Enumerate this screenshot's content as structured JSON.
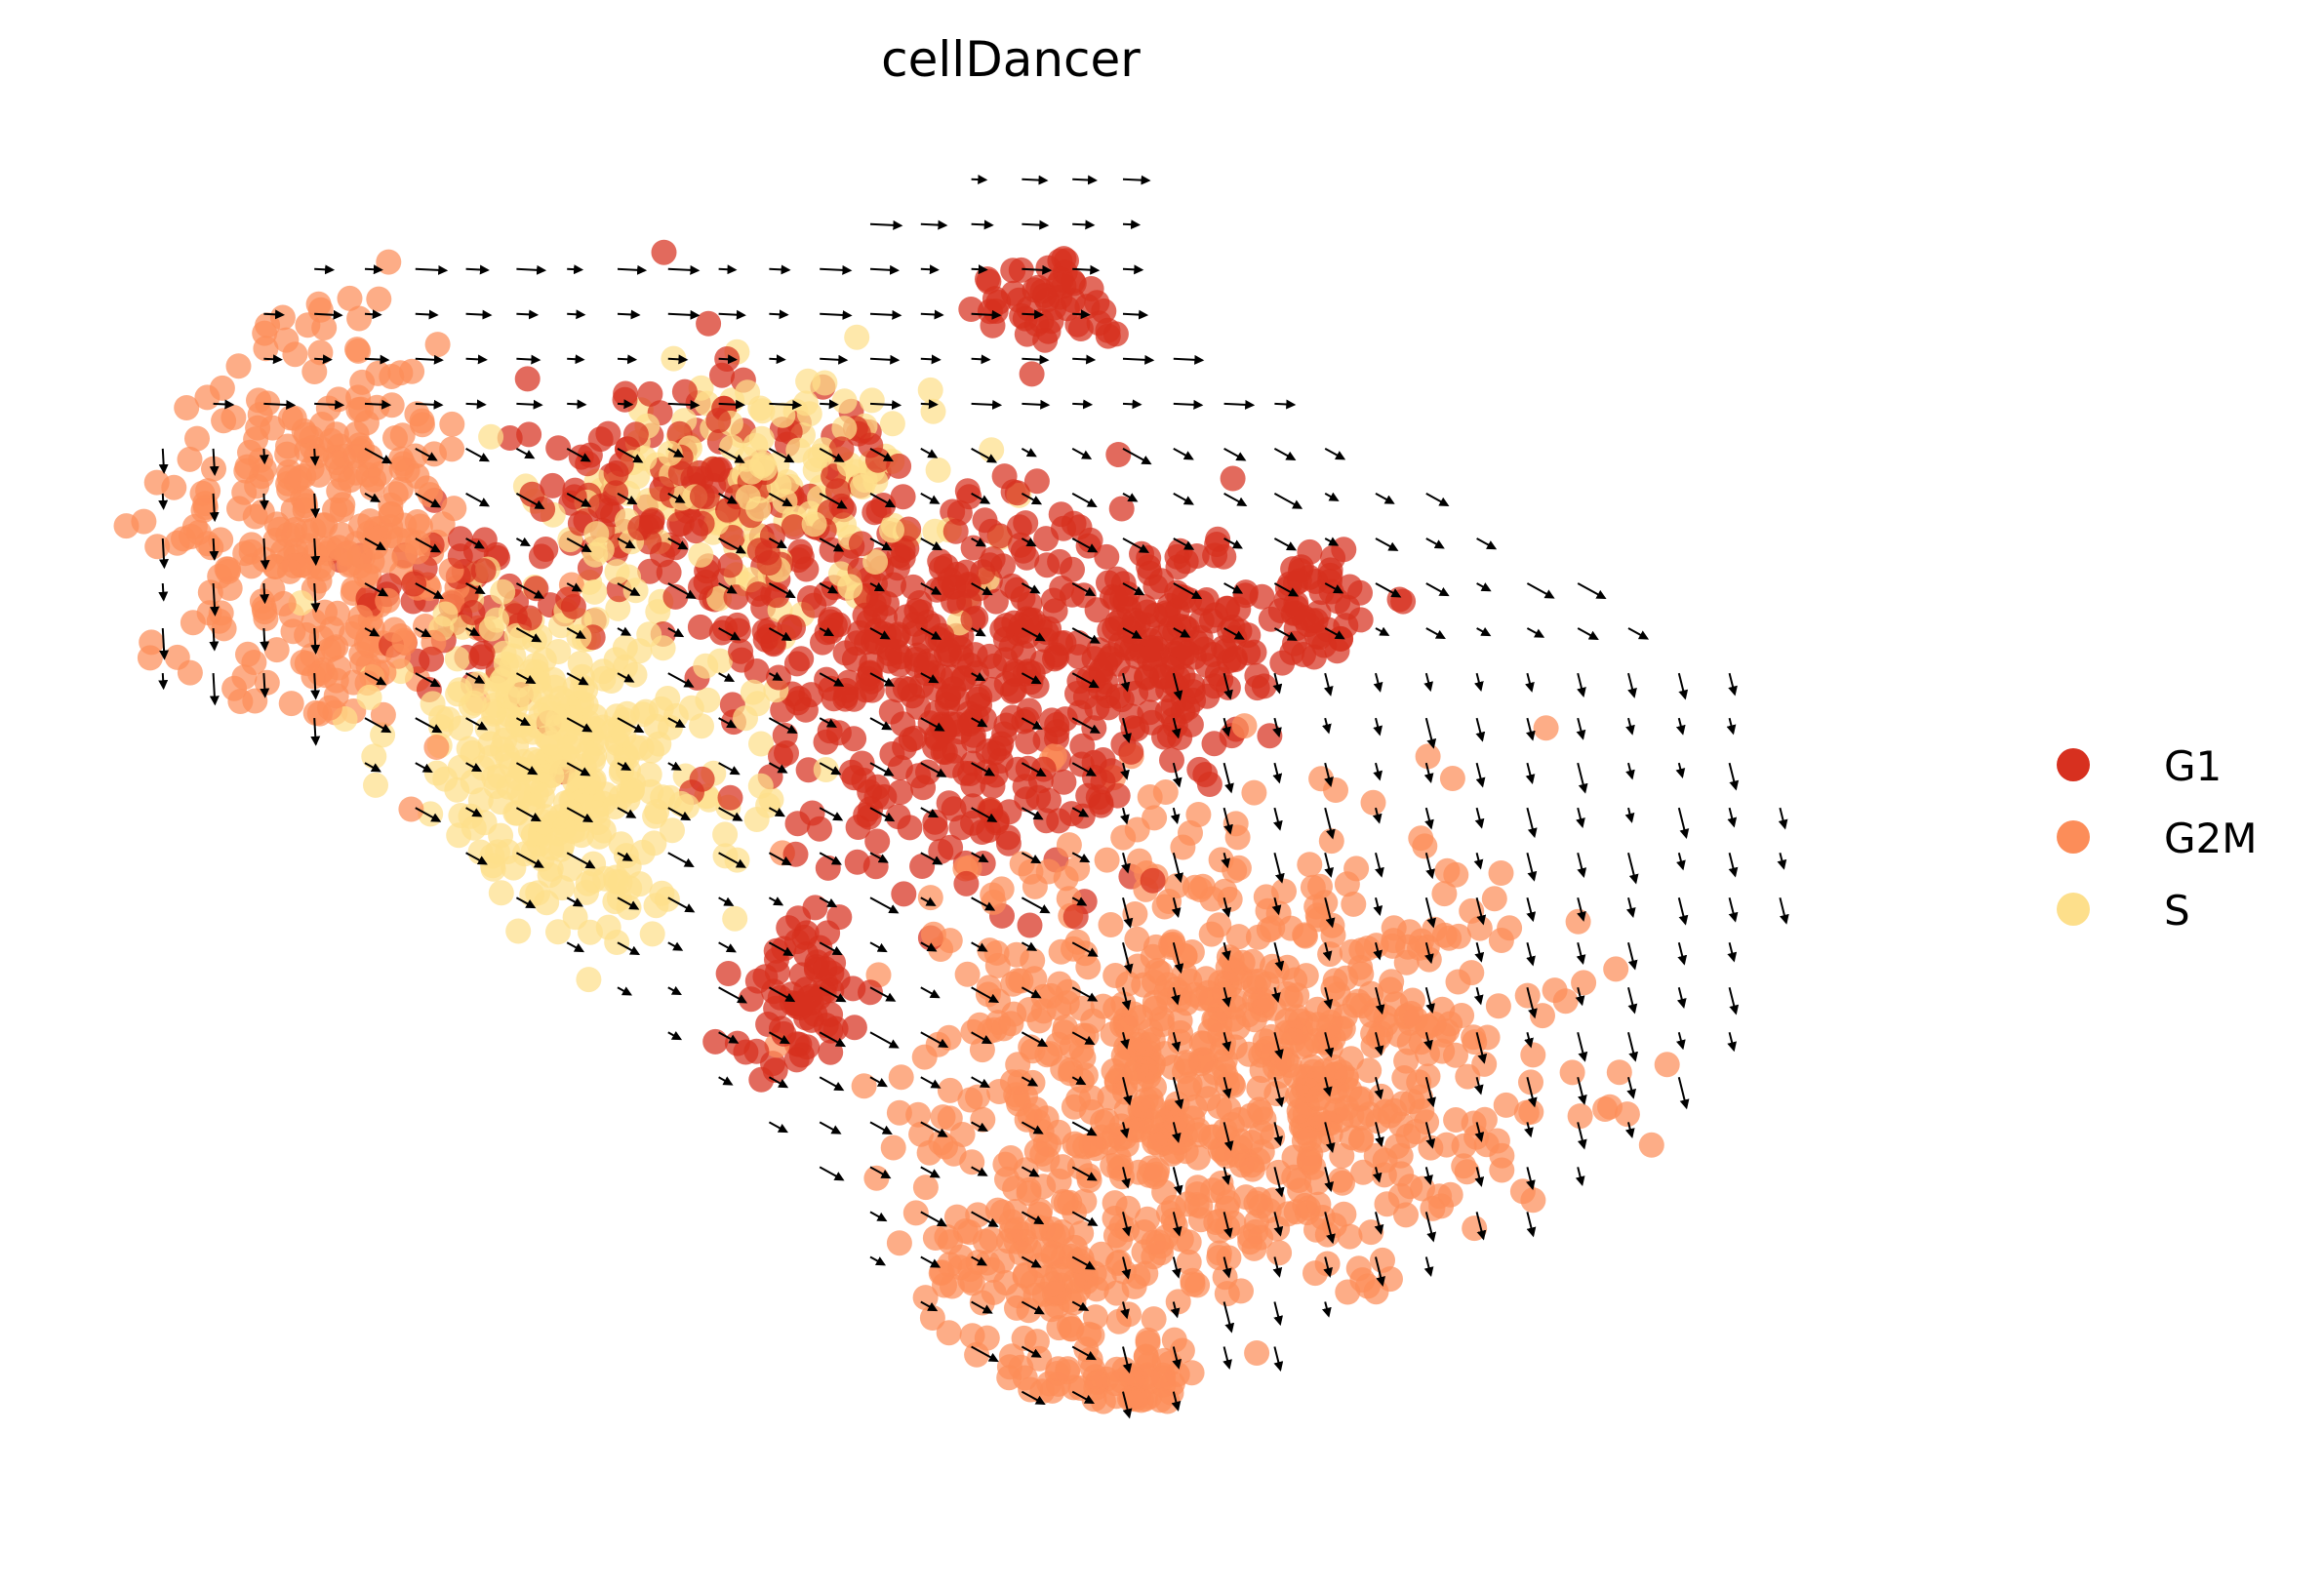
{
  "chart_data": {
    "type": "scatter",
    "title": "cellDancer",
    "xlabel": "",
    "ylabel": "",
    "axes_visible": false,
    "grid": false,
    "legend_position": "right",
    "overlay": "velocity arrows (black)",
    "colors": {
      "G1": "#d7301f",
      "G2M": "#fc8d59",
      "S": "#fddf8b",
      "arrow": "#000000"
    },
    "series": [
      {
        "name": "G1",
        "color": "#d7301f",
        "regions": [
          {
            "center": [
              0.52,
              0.1
            ],
            "spread": [
              0.04,
              0.03
            ],
            "n": 50
          },
          {
            "center": [
              0.46,
              0.38
            ],
            "spread": [
              0.09,
              0.13
            ],
            "n": 420
          },
          {
            "center": [
              0.33,
              0.25
            ],
            "spread": [
              0.08,
              0.08
            ],
            "n": 160
          },
          {
            "center": [
              0.58,
              0.36
            ],
            "spread": [
              0.05,
              0.07
            ],
            "n": 160
          },
          {
            "center": [
              0.38,
              0.62
            ],
            "spread": [
              0.03,
              0.06
            ],
            "n": 70
          },
          {
            "center": [
              0.2,
              0.33
            ],
            "spread": [
              0.05,
              0.06
            ],
            "n": 60
          },
          {
            "center": [
              0.66,
              0.33
            ],
            "spread": [
              0.04,
              0.04
            ],
            "n": 60
          }
        ]
      },
      {
        "name": "G2M",
        "color": "#fc8d59",
        "regions": [
          {
            "center": [
              0.12,
              0.28
            ],
            "spread": [
              0.07,
              0.13
            ],
            "n": 320
          },
          {
            "center": [
              0.62,
              0.68
            ],
            "spread": [
              0.14,
              0.15
            ],
            "n": 800
          },
          {
            "center": [
              0.52,
              0.82
            ],
            "spread": [
              0.06,
              0.06
            ],
            "n": 120
          },
          {
            "center": [
              0.56,
              0.92
            ],
            "spread": [
              0.05,
              0.03
            ],
            "n": 60
          }
        ]
      },
      {
        "name": "S",
        "color": "#fddf8b",
        "regions": [
          {
            "center": [
              0.25,
              0.44
            ],
            "spread": [
              0.08,
              0.11
            ],
            "n": 360
          },
          {
            "center": [
              0.36,
              0.24
            ],
            "spread": [
              0.1,
              0.06
            ],
            "n": 160
          }
        ]
      }
    ]
  },
  "legend": {
    "items": [
      {
        "label": "G1",
        "color": "#d7301f"
      },
      {
        "label": "G2M",
        "color": "#fc8d59"
      },
      {
        "label": "S",
        "color": "#fddf8b"
      }
    ]
  }
}
